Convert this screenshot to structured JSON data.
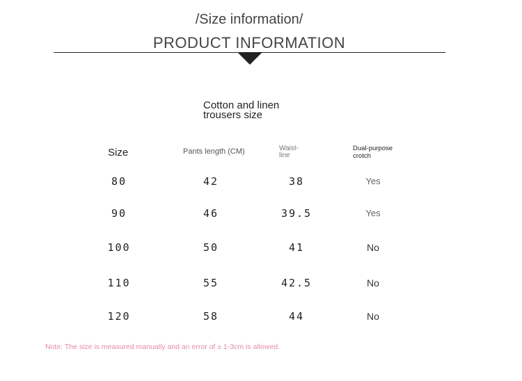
{
  "header": {
    "subtitle": "/Size information/",
    "title": "PRODUCT INFORMATION"
  },
  "table": {
    "title_line1": "Cotton and linen",
    "title_line2": "trousers size",
    "headers": {
      "size": "Size",
      "length": "Pants length (CM)",
      "waist_line1": "Waist-",
      "waist_line2": "line",
      "crotch_line1": "Dual-purpose",
      "crotch_line2": "crotch"
    },
    "rows": [
      {
        "size": "80",
        "length": "42",
        "waist": "38",
        "crotch": "Yes"
      },
      {
        "size": "90",
        "length": "46",
        "waist": "39.5",
        "crotch": "Yes"
      },
      {
        "size": "100",
        "length": "50",
        "waist": "41",
        "crotch": "No"
      },
      {
        "size": "110",
        "length": "55",
        "waist": "42.5",
        "crotch": "No"
      },
      {
        "size": "120",
        "length": "58",
        "waist": "44",
        "crotch": "No"
      }
    ]
  },
  "note": "Note: The size is measured manually and an error of ± 1-3cm is allowed.",
  "colors": {
    "note": "#e58aa8",
    "rule": "#222222"
  }
}
